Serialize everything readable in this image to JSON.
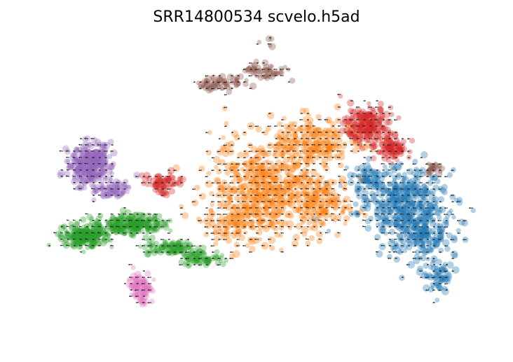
{
  "chart_data": {
    "type": "scatter",
    "title": "SRR14800534 scvelo.h5ad",
    "xlabel": "",
    "ylabel": "",
    "axes_visible": false,
    "grid": false,
    "legend": "none",
    "overlay": "velocity arrows (black, grid)",
    "point_alpha": 0.35,
    "xlim": [
      0,
      100
    ],
    "ylim": [
      0,
      100
    ],
    "series": [
      {
        "color": "#1f77b4",
        "blobs": [
          [
            82,
            45,
            8,
            10,
            420
          ],
          [
            86,
            34,
            6,
            7,
            160
          ],
          [
            75,
            53,
            4,
            4,
            70
          ],
          [
            90,
            20,
            3,
            4,
            60
          ]
        ]
      },
      {
        "color": "#ff7f0e",
        "blobs": [
          [
            52,
            50,
            10,
            13,
            520
          ],
          [
            63,
            66,
            8,
            7,
            220
          ],
          [
            64,
            45,
            6,
            8,
            140
          ],
          [
            45,
            38,
            5,
            6,
            80
          ]
        ]
      },
      {
        "color": "#2ca02c",
        "blobs": [
          [
            12,
            34,
            4,
            3,
            230
          ],
          [
            22,
            38,
            6,
            3,
            230
          ],
          [
            31,
            30,
            5,
            2,
            90
          ],
          [
            38,
            26,
            4,
            1.6,
            60
          ]
        ]
      },
      {
        "color": "#d62728",
        "blobs": [
          [
            74,
            72,
            4,
            5,
            190
          ],
          [
            80,
            64,
            3,
            3,
            90
          ],
          [
            29,
            52,
            3,
            3,
            70
          ]
        ]
      },
      {
        "color": "#9467bd",
        "blobs": [
          [
            13,
            58,
            4,
            6,
            300
          ],
          [
            18,
            50,
            3,
            3,
            60
          ]
        ]
      },
      {
        "color": "#8c564b",
        "blobs": [
          [
            42,
            86,
            4,
            2,
            60
          ],
          [
            52,
            90,
            4,
            3,
            50
          ],
          [
            53,
            102,
            2,
            2,
            30
          ],
          [
            89,
            57,
            1.5,
            1.5,
            25
          ]
        ]
      },
      {
        "color": "#e377c2",
        "blobs": [
          [
            24,
            16,
            2,
            4,
            100
          ]
        ]
      }
    ]
  }
}
